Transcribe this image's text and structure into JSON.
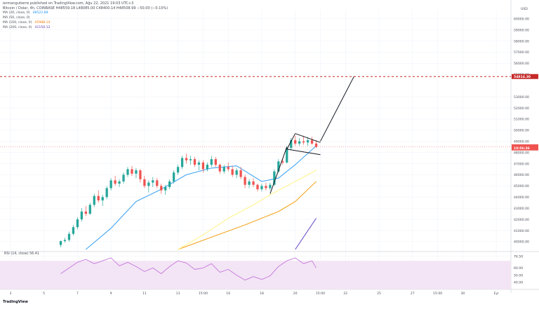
{
  "header": {
    "publisher": "iermangutierre published on TradingView.com, Ağu 22, 2021 19:03 UTC+3",
    "symbol_line": "Bitcoin / Dolar, 4h, COINBASE  H48559.18  L48085.00  C48400.14  H48508.99  −50.00 (−0.10%)",
    "currency": "USD"
  },
  "indicators": [
    {
      "label": "MA (20, close, 0)",
      "value": "48522.88",
      "color": "#2196f3"
    },
    {
      "label": "MA (50, close, 0)",
      "value": "",
      "color": "#fdd835"
    },
    {
      "label": "MA (100, close, 0)",
      "value": "45988.14",
      "color": "#f57c00"
    },
    {
      "label": "MA (200, close, 0)",
      "value": "41150.12",
      "color": "#5e35b1"
    }
  ],
  "rsi_label": "RSI (14, close)  56.41",
  "footer": {
    "brand": "TradingView"
  },
  "colors": {
    "up": "#26a69a",
    "down": "#ef5350",
    "ma20": "#42a5f5",
    "ma50": "#fff59d",
    "ma100": "#f5a623",
    "ma200": "#6a4cc9",
    "rsi": "#c678dd",
    "rsi_band": "#f3e5f5",
    "target": "#d32f2f",
    "grid": "#f0f3fa"
  },
  "chart_data": {
    "type": "candlestick",
    "price_axis": {
      "ticks": [
        60000,
        59000,
        58000,
        57000,
        56000,
        55000,
        53000,
        52000,
        51000,
        50000,
        49000,
        48000,
        47000,
        46000,
        45000,
        44000,
        43000,
        42000,
        41000,
        40000
      ],
      "tick_labels": [
        "60000.00",
        "59000.00",
        "58000.00",
        "57000.00",
        "56000.00",
        "55000.00",
        "53000.00",
        "52000.00",
        "51000.00",
        "50000.00",
        "49000.00",
        "48000.00",
        "47000.00",
        "46000.00",
        "45000.00",
        "44000.00",
        "43000.00",
        "42000.00",
        "41000.00",
        "40000.00"
      ],
      "ylim": [
        39300,
        60800
      ]
    },
    "x_axis": {
      "labels": [
        "3",
        "5",
        "7",
        "9",
        "11",
        "13",
        "15:00",
        "16",
        "18",
        "20",
        "15:00",
        "22",
        "25",
        "27",
        "15:00",
        "30",
        "Eyl"
      ],
      "label_index": [
        2,
        10,
        18,
        26,
        34,
        42,
        48,
        54,
        62,
        70,
        76,
        82,
        90,
        98,
        104,
        110,
        118
      ],
      "n_slots": 122
    },
    "price_markers": [
      {
        "value": 54814.3,
        "label": "54814.30",
        "color": "#c62828"
      },
      {
        "value": 48508.99,
        "label": "48508.99",
        "color": "#ef5350"
      },
      {
        "value": 48400.0,
        "label": "10:56:36",
        "color": "#ef5350"
      }
    ],
    "candles": [
      [
        14,
        39700,
        40100,
        39500,
        40050
      ],
      [
        15,
        40050,
        40350,
        39900,
        40150
      ],
      [
        16,
        40150,
        40900,
        40000,
        40700
      ],
      [
        17,
        40700,
        41500,
        40550,
        41300
      ],
      [
        18,
        41300,
        42200,
        41100,
        42000
      ],
      [
        19,
        42000,
        43000,
        41800,
        42700
      ],
      [
        20,
        42700,
        43200,
        42300,
        42500
      ],
      [
        21,
        42500,
        43500,
        42400,
        43300
      ],
      [
        22,
        43300,
        44300,
        43100,
        44100
      ],
      [
        23,
        44100,
        44600,
        43500,
        43700
      ],
      [
        24,
        43700,
        44200,
        43200,
        44000
      ],
      [
        25,
        44000,
        45000,
        43800,
        44800
      ],
      [
        26,
        44800,
        45700,
        44600,
        45500
      ],
      [
        27,
        45500,
        45900,
        45000,
        45200
      ],
      [
        28,
        45200,
        45600,
        44900,
        45400
      ],
      [
        29,
        45400,
        46200,
        45200,
        46000
      ],
      [
        30,
        46000,
        46700,
        45800,
        46500
      ],
      [
        31,
        46500,
        46800,
        45900,
        46100
      ],
      [
        32,
        46100,
        46600,
        45700,
        46400
      ],
      [
        33,
        46400,
        46500,
        45300,
        45600
      ],
      [
        34,
        45600,
        45900,
        44800,
        45000
      ],
      [
        35,
        45000,
        45500,
        44400,
        45300
      ],
      [
        36,
        45300,
        45800,
        44900,
        45500
      ],
      [
        37,
        45500,
        45700,
        44800,
        45000
      ],
      [
        38,
        45000,
        45200,
        44300,
        44600
      ],
      [
        39,
        44600,
        45100,
        44200,
        44900
      ],
      [
        40,
        44900,
        45600,
        44700,
        45400
      ],
      [
        41,
        45400,
        46400,
        45200,
        46200
      ],
      [
        42,
        46200,
        46900,
        46000,
        46700
      ],
      [
        43,
        46700,
        47700,
        46500,
        47500
      ],
      [
        44,
        47500,
        47900,
        47000,
        47300
      ],
      [
        45,
        47300,
        47700,
        46900,
        47400
      ],
      [
        46,
        47400,
        47600,
        46700,
        46900
      ],
      [
        47,
        46900,
        47300,
        46400,
        47100
      ],
      [
        48,
        47100,
        47300,
        46200,
        46500
      ],
      [
        49,
        46500,
        47100,
        46300,
        46900
      ],
      [
        50,
        46900,
        47700,
        46700,
        47400
      ],
      [
        51,
        47400,
        47600,
        46700,
        46900
      ],
      [
        52,
        46900,
        47000,
        46100,
        46300
      ],
      [
        53,
        46300,
        46900,
        46100,
        46700
      ],
      [
        54,
        46700,
        47100,
        46300,
        46500
      ],
      [
        55,
        46500,
        46800,
        45800,
        46000
      ],
      [
        56,
        46000,
        46600,
        45700,
        46400
      ],
      [
        57,
        46400,
        46700,
        45600,
        45800
      ],
      [
        58,
        45800,
        46000,
        44800,
        45100
      ],
      [
        59,
        45100,
        45600,
        44800,
        45400
      ],
      [
        60,
        45400,
        45700,
        44900,
        45100
      ],
      [
        61,
        45100,
        45200,
        44500,
        44700
      ],
      [
        62,
        44700,
        45200,
        44500,
        45000
      ],
      [
        63,
        45000,
        45300,
        44600,
        44800
      ],
      [
        64,
        44800,
        45300,
        44600,
        45100
      ],
      [
        65,
        45100,
        46500,
        45000,
        46300
      ],
      [
        66,
        46300,
        47400,
        46200,
        47200
      ],
      [
        67,
        47200,
        47500,
        46900,
        47100
      ],
      [
        68,
        47100,
        48600,
        47000,
        48400
      ],
      [
        69,
        48400,
        49300,
        48200,
        49100
      ],
      [
        70,
        49100,
        49500,
        48600,
        48800
      ],
      [
        71,
        48800,
        49300,
        48600,
        49000
      ],
      [
        72,
        49000,
        49500,
        48700,
        48900
      ],
      [
        73,
        48900,
        49400,
        48600,
        49100
      ],
      [
        74,
        49100,
        49400,
        48700,
        48800
      ],
      [
        75,
        48800,
        49100,
        48400,
        48500
      ]
    ],
    "ma20": [
      [
        20,
        39300
      ],
      [
        26,
        41200
      ],
      [
        32,
        43600
      ],
      [
        38,
        44700
      ],
      [
        44,
        46000
      ],
      [
        50,
        46600
      ],
      [
        56,
        46800
      ],
      [
        62,
        45400
      ],
      [
        66,
        45700
      ],
      [
        70,
        46900
      ],
      [
        75,
        48600
      ]
    ],
    "ma50": [
      [
        42,
        39300
      ],
      [
        48,
        40600
      ],
      [
        54,
        42100
      ],
      [
        60,
        43300
      ],
      [
        64,
        44200
      ],
      [
        68,
        45000
      ],
      [
        72,
        45800
      ],
      [
        75,
        46400
      ]
    ],
    "ma100": [
      [
        42,
        39300
      ],
      [
        50,
        40400
      ],
      [
        58,
        41500
      ],
      [
        66,
        42700
      ],
      [
        70,
        43600
      ],
      [
        75,
        45400
      ]
    ],
    "ma200": [
      [
        70,
        39300
      ],
      [
        75,
        42100
      ]
    ],
    "drawings": {
      "flagpole": [
        [
          64,
          44300
        ],
        [
          68,
          48500
        ]
      ],
      "flag_upper": [
        [
          70,
          49700
        ],
        [
          76,
          48900
        ]
      ],
      "flag_lower": [
        [
          68,
          48300
        ],
        [
          76,
          47800
        ]
      ],
      "projection": [
        [
          76,
          49000
        ],
        [
          84,
          54800
        ]
      ]
    },
    "rsi": {
      "ticks": [
        76.5,
        60.0,
        50.0,
        40.0
      ],
      "tick_labels": [
        "76.50",
        "60.00",
        "50.00",
        "40.00"
      ],
      "ylim": [
        33,
        80
      ],
      "band": [
        30,
        70
      ],
      "values": [
        [
          14,
          52
        ],
        [
          16,
          60
        ],
        [
          18,
          68
        ],
        [
          20,
          72
        ],
        [
          22,
          66
        ],
        [
          24,
          70
        ],
        [
          26,
          74
        ],
        [
          28,
          63
        ],
        [
          30,
          68
        ],
        [
          32,
          62
        ],
        [
          34,
          55
        ],
        [
          36,
          60
        ],
        [
          38,
          52
        ],
        [
          40,
          62
        ],
        [
          42,
          70
        ],
        [
          44,
          67
        ],
        [
          46,
          58
        ],
        [
          48,
          60
        ],
        [
          50,
          66
        ],
        [
          52,
          54
        ],
        [
          54,
          58
        ],
        [
          56,
          50
        ],
        [
          58,
          43
        ],
        [
          60,
          48
        ],
        [
          62,
          44
        ],
        [
          64,
          49
        ],
        [
          66,
          62
        ],
        [
          68,
          70
        ],
        [
          70,
          74
        ],
        [
          72,
          66
        ],
        [
          74,
          70
        ],
        [
          75,
          60
        ]
      ]
    }
  }
}
